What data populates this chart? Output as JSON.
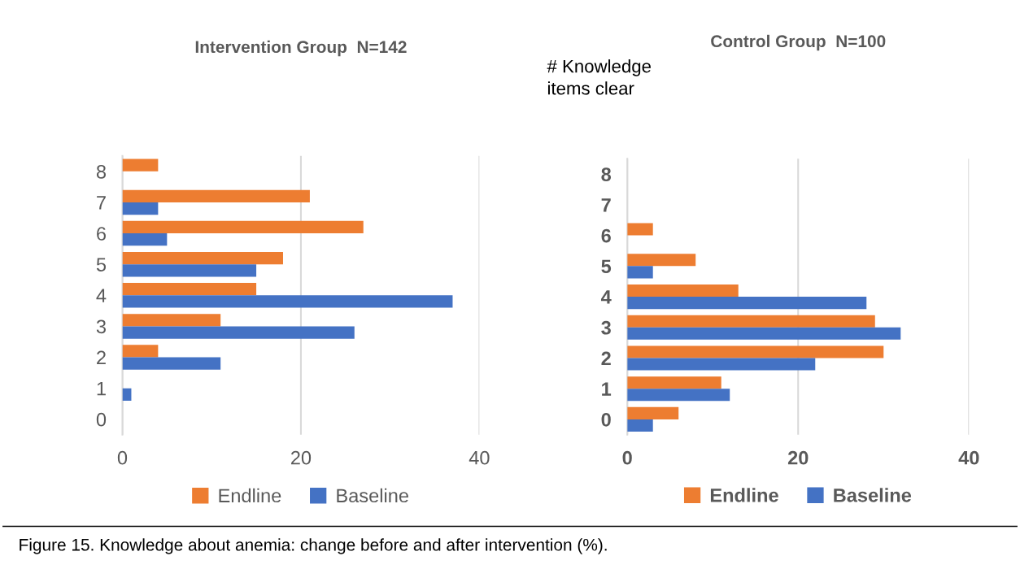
{
  "chart_data": [
    {
      "type": "bar",
      "orientation": "horizontal",
      "title": "Intervention Group  N=142",
      "categories": [
        "8",
        "7",
        "6",
        "5",
        "4",
        "3",
        "2",
        "1",
        "0"
      ],
      "series": [
        {
          "name": "Endline",
          "color": "#ed7d31",
          "values": [
            4,
            21,
            27,
            18,
            15,
            11,
            4,
            0,
            0
          ]
        },
        {
          "name": "Baseline",
          "color": "#4472c4",
          "values": [
            0,
            4,
            5,
            15,
            37,
            26,
            11,
            1,
            0
          ]
        }
      ],
      "xlim": [
        0,
        40
      ],
      "xticks": [
        0,
        20,
        40
      ],
      "grid": "x",
      "legend": "bottom",
      "annotations": [
        "Figure 15. Knowledge about anemia: change before and after intervention (%)."
      ]
    },
    {
      "type": "bar",
      "orientation": "horizontal",
      "title": "Control Group  N=100",
      "ylabel": "# Knowledge\nitems clear",
      "categories": [
        "8",
        "7",
        "6",
        "5",
        "4",
        "3",
        "2",
        "1",
        "0"
      ],
      "series": [
        {
          "name": "Endline",
          "color": "#ed7d31",
          "values": [
            0,
            0,
            3,
            8,
            13,
            29,
            30,
            11,
            6
          ]
        },
        {
          "name": "Baseline",
          "color": "#4472c4",
          "values": [
            0,
            0,
            0,
            3,
            28,
            32,
            22,
            12,
            3
          ]
        }
      ],
      "xlim": [
        0,
        40
      ],
      "xticks": [
        0,
        20,
        40
      ],
      "grid": "x",
      "legend": "bottom"
    }
  ]
}
